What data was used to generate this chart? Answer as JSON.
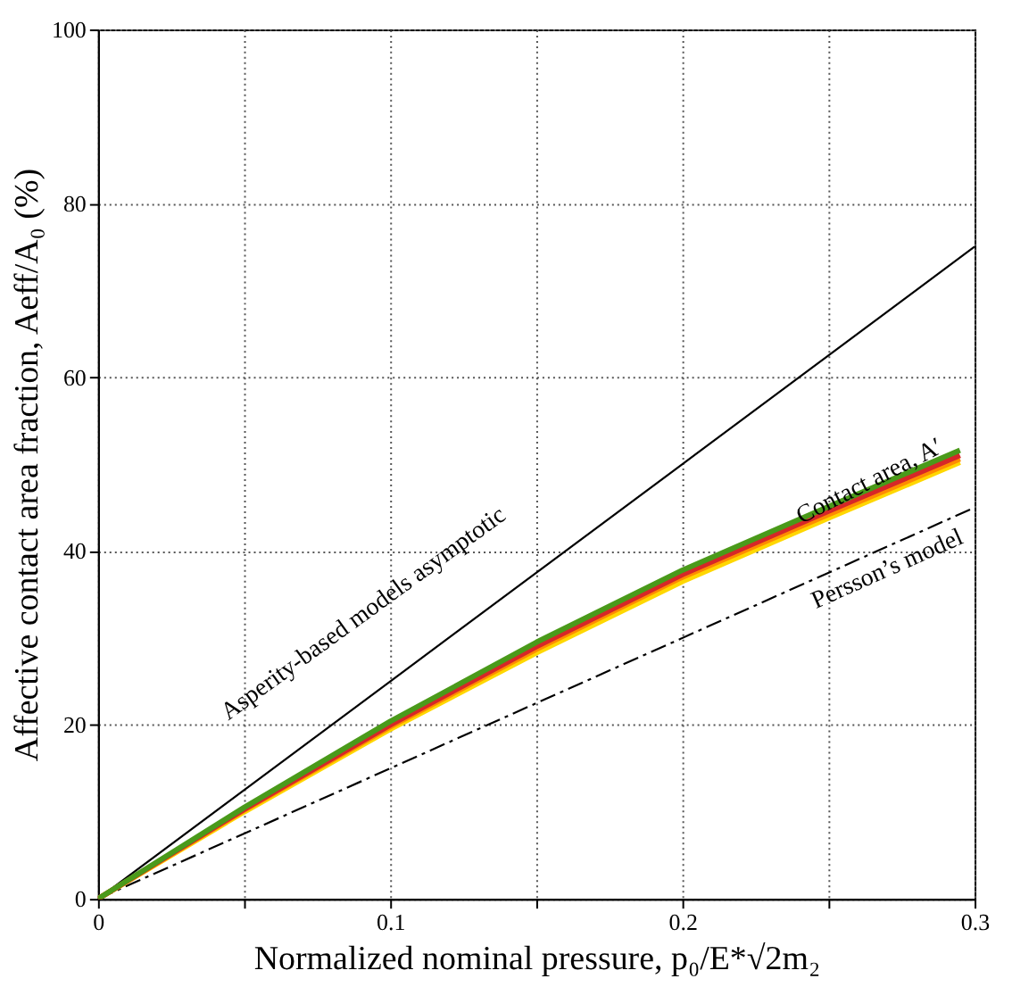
{
  "chart_data": {
    "type": "line",
    "xlabel": "Normalized nominal pressure, p₀/E*√2m₂",
    "ylabel": "Affective contact area fraction, Aeff/A₀ (%)",
    "xlim": [
      0,
      0.3
    ],
    "ylim": [
      0,
      100
    ],
    "xticks": [
      0,
      {
        "value": 0.05,
        "label": null
      },
      0.1,
      {
        "value": 0.15,
        "label": null
      },
      0.2,
      {
        "value": 0.25,
        "label": null
      },
      0.3
    ],
    "yticks": [
      0,
      20,
      40,
      60,
      80,
      100
    ],
    "grid": true,
    "marker": "none",
    "series": [
      {
        "color": "#000000",
        "x": [
          0,
          0.3
        ],
        "values": [
          0,
          75
        ],
        "line_style": "solid"
      },
      {
        "color": "#000000",
        "x": [
          0,
          0.3
        ],
        "values": [
          0,
          45
        ],
        "line_style": "dashed"
      },
      {
        "color": "#ffd700",
        "x": [
          0,
          0.05,
          0.1,
          0.15,
          0.2,
          0.25,
          0.295
        ],
        "values": [
          0,
          10.0,
          19.5,
          28.3,
          36.5,
          43.8,
          50.2
        ],
        "line_style": "solid"
      },
      {
        "color": "#ff8c00",
        "x": [
          0,
          0.05,
          0.1,
          0.15,
          0.2,
          0.25,
          0.295
        ],
        "values": [
          0,
          10.2,
          19.8,
          28.7,
          37.0,
          44.2,
          50.6
        ],
        "line_style": "solid"
      },
      {
        "color": "#d62728",
        "x": [
          0,
          0.05,
          0.1,
          0.15,
          0.2,
          0.25,
          0.295
        ],
        "values": [
          0,
          10.3,
          20.0,
          29.0,
          37.3,
          44.6,
          51.0
        ],
        "line_style": "solid"
      },
      {
        "color": "#4a9a1a",
        "x": [
          0,
          0.05,
          0.1,
          0.15,
          0.2,
          0.25,
          0.295
        ],
        "values": [
          0,
          10.5,
          20.4,
          29.5,
          37.8,
          45.1,
          51.6
        ],
        "line_style": "solid"
      }
    ],
    "annotations": [
      "Asperity-based models asymptotic",
      {
        "text": "Contact area, A′",
        "x": 0.264,
        "y": 48
      },
      "Persson’s model"
    ]
  }
}
